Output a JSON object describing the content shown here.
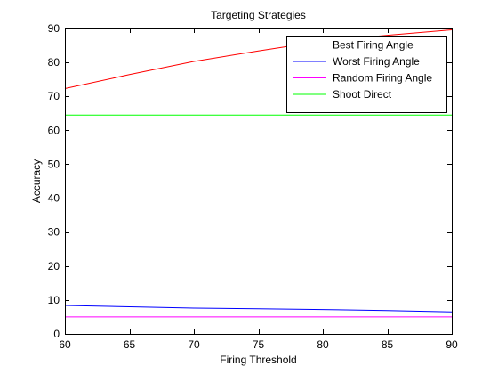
{
  "chart_data": {
    "type": "line",
    "title": "Targeting Strategies",
    "xlabel": "Firing Threshold",
    "ylabel": "Accuracy",
    "xlim": [
      60,
      90
    ],
    "ylim": [
      0,
      90
    ],
    "xticks": [
      60,
      65,
      70,
      75,
      80,
      85,
      90
    ],
    "yticks": [
      0,
      10,
      20,
      30,
      40,
      50,
      60,
      70,
      80,
      90
    ],
    "grid": false,
    "legend_position": "top-right",
    "series": [
      {
        "name": "Best Firing Angle",
        "color": "#ff0000",
        "x": [
          60,
          65,
          70,
          75,
          80,
          85,
          90
        ],
        "y": [
          72.3,
          76.4,
          80.3,
          83.4,
          86.3,
          88.0,
          89.6
        ]
      },
      {
        "name": "Worst Firing Angle",
        "color": "#0000ff",
        "x": [
          60,
          65,
          70,
          75,
          80,
          85,
          90
        ],
        "y": [
          8.4,
          8.0,
          7.6,
          7.4,
          7.2,
          6.9,
          6.5
        ]
      },
      {
        "name": "Random Firing Angle",
        "color": "#ff00ff",
        "x": [
          60,
          65,
          70,
          75,
          80,
          85,
          90
        ],
        "y": [
          5.0,
          5.0,
          5.0,
          5.0,
          5.0,
          5.0,
          5.0
        ]
      },
      {
        "name": "Shoot Direct",
        "color": "#00ff00",
        "x": [
          60,
          65,
          70,
          75,
          80,
          85,
          90
        ],
        "y": [
          64.5,
          64.5,
          64.5,
          64.5,
          64.5,
          64.5,
          64.5
        ]
      }
    ]
  }
}
